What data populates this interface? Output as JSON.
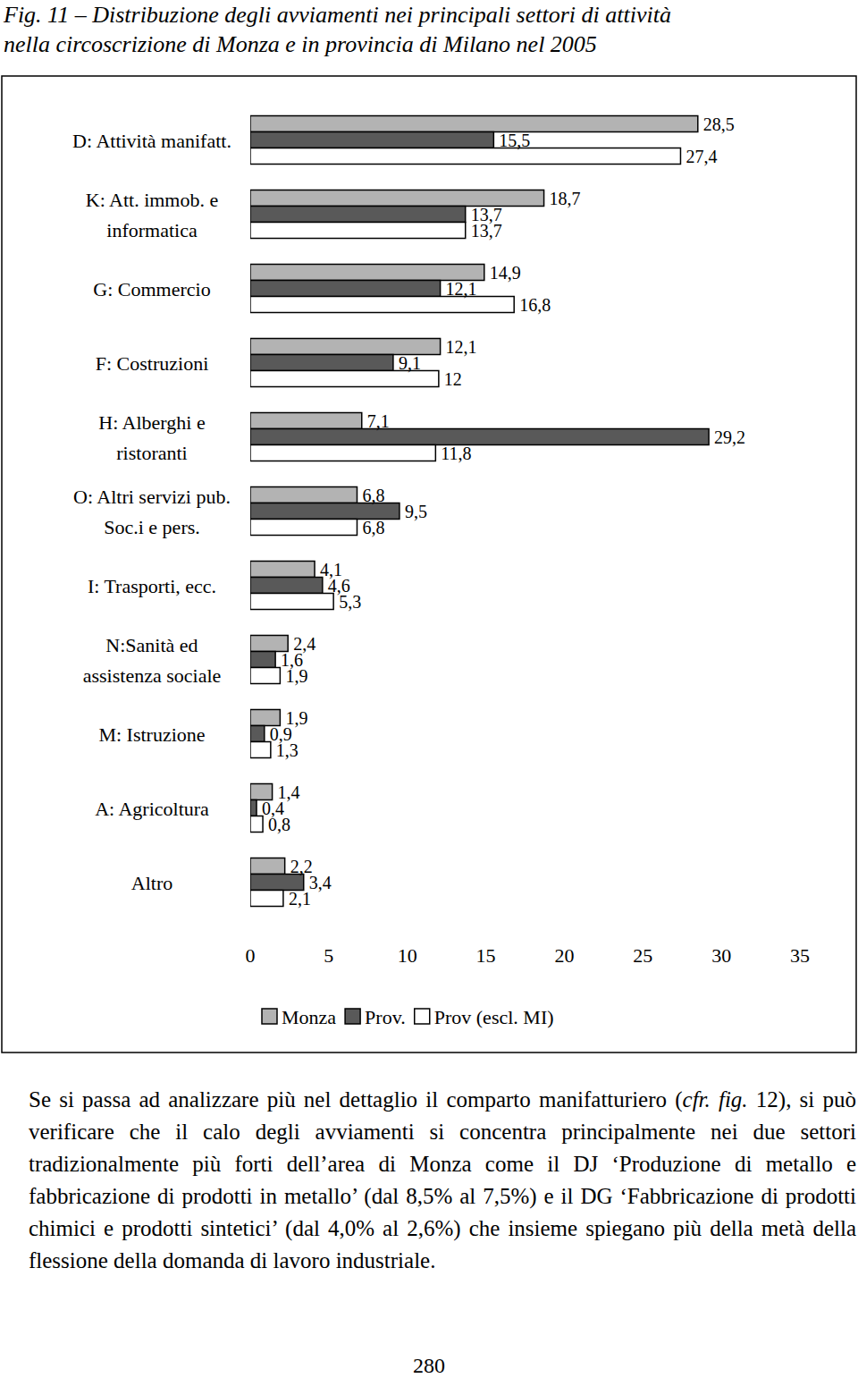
{
  "chart_data": {
    "type": "bar",
    "title": "Fig. 11 – Distribuzione degli avviamenti nei principali settori di attività\nnella circoscrizione di Monza e in provincia di Milano nel 2005",
    "orientation": "horizontal",
    "data_labels": true,
    "tick_labels": "x",
    "grid": false,
    "legend": "bottom",
    "categories": [
      "D: Attività manifatt.",
      "K: Att. immob. e\ninformatica",
      "G: Commercio",
      "F: Costruzioni",
      "H: Alberghi e\nristoranti",
      "O: Altri servizi pub.\nSoc.i e pers.",
      "I: Trasporti, ecc.",
      "N:Sanità ed\nassistenza sociale",
      "M: Istruzione",
      "A: Agricoltura",
      "Altro"
    ],
    "series": [
      {
        "name": "Monza",
        "color": "#b3b3b3",
        "values": [
          28.5,
          18.7,
          14.9,
          12.1,
          7.1,
          6.8,
          4.1,
          2.4,
          1.9,
          1.4,
          2.2
        ],
        "value_labels": [
          "28,5",
          "18,7",
          "14,9",
          "12,1",
          "7,1",
          "6,8",
          "4,1",
          "2,4",
          "1,9",
          "1,4",
          "2,2"
        ]
      },
      {
        "name": "Prov.",
        "color": "#595959",
        "values": [
          15.5,
          13.7,
          12.1,
          9.1,
          29.2,
          9.5,
          4.6,
          1.6,
          0.9,
          0.4,
          3.4
        ],
        "value_labels": [
          "15,5",
          "13,7",
          "12,1",
          "9,1",
          "29,2",
          "9,5",
          "4,6",
          "1,6",
          "0,9",
          "0,4",
          "3,4"
        ]
      },
      {
        "name": "Prov (escl. MI)",
        "color": "#ffffff",
        "values": [
          27.4,
          13.7,
          16.8,
          12,
          11.8,
          6.8,
          5.3,
          1.9,
          1.3,
          0.8,
          2.1
        ],
        "value_labels": [
          "27,4",
          "13,7",
          "16,8",
          "12",
          "11,8",
          "6,8",
          "5,3",
          "1,9",
          "1,3",
          "0,8",
          "2,1"
        ]
      }
    ],
    "xlim": [
      0,
      35
    ],
    "xticks": [
      0,
      5,
      10,
      15,
      20,
      25,
      30,
      35
    ]
  },
  "paragraph": [
    "Se si passa ad analizzare più nel dettaglio il comparto manifatturiero (",
    "cfr. fig.",
    " 12), si può verificare che il calo degli avviamenti si concentra principalmente nei due settori tradizionalmente più forti dell’area di Monza come il DJ ‘Produzione di metallo e fabbricazione di prodotti in metallo’ (dal 8,5% al 7,5%) e il DG ‘Fabbricazione di prodotti chimici e prodotti sintetici’ (dal 4,0% al 2,6%) che insieme spiegano più della metà della flessione della domanda di lavoro industriale."
  ],
  "page_number": 280
}
